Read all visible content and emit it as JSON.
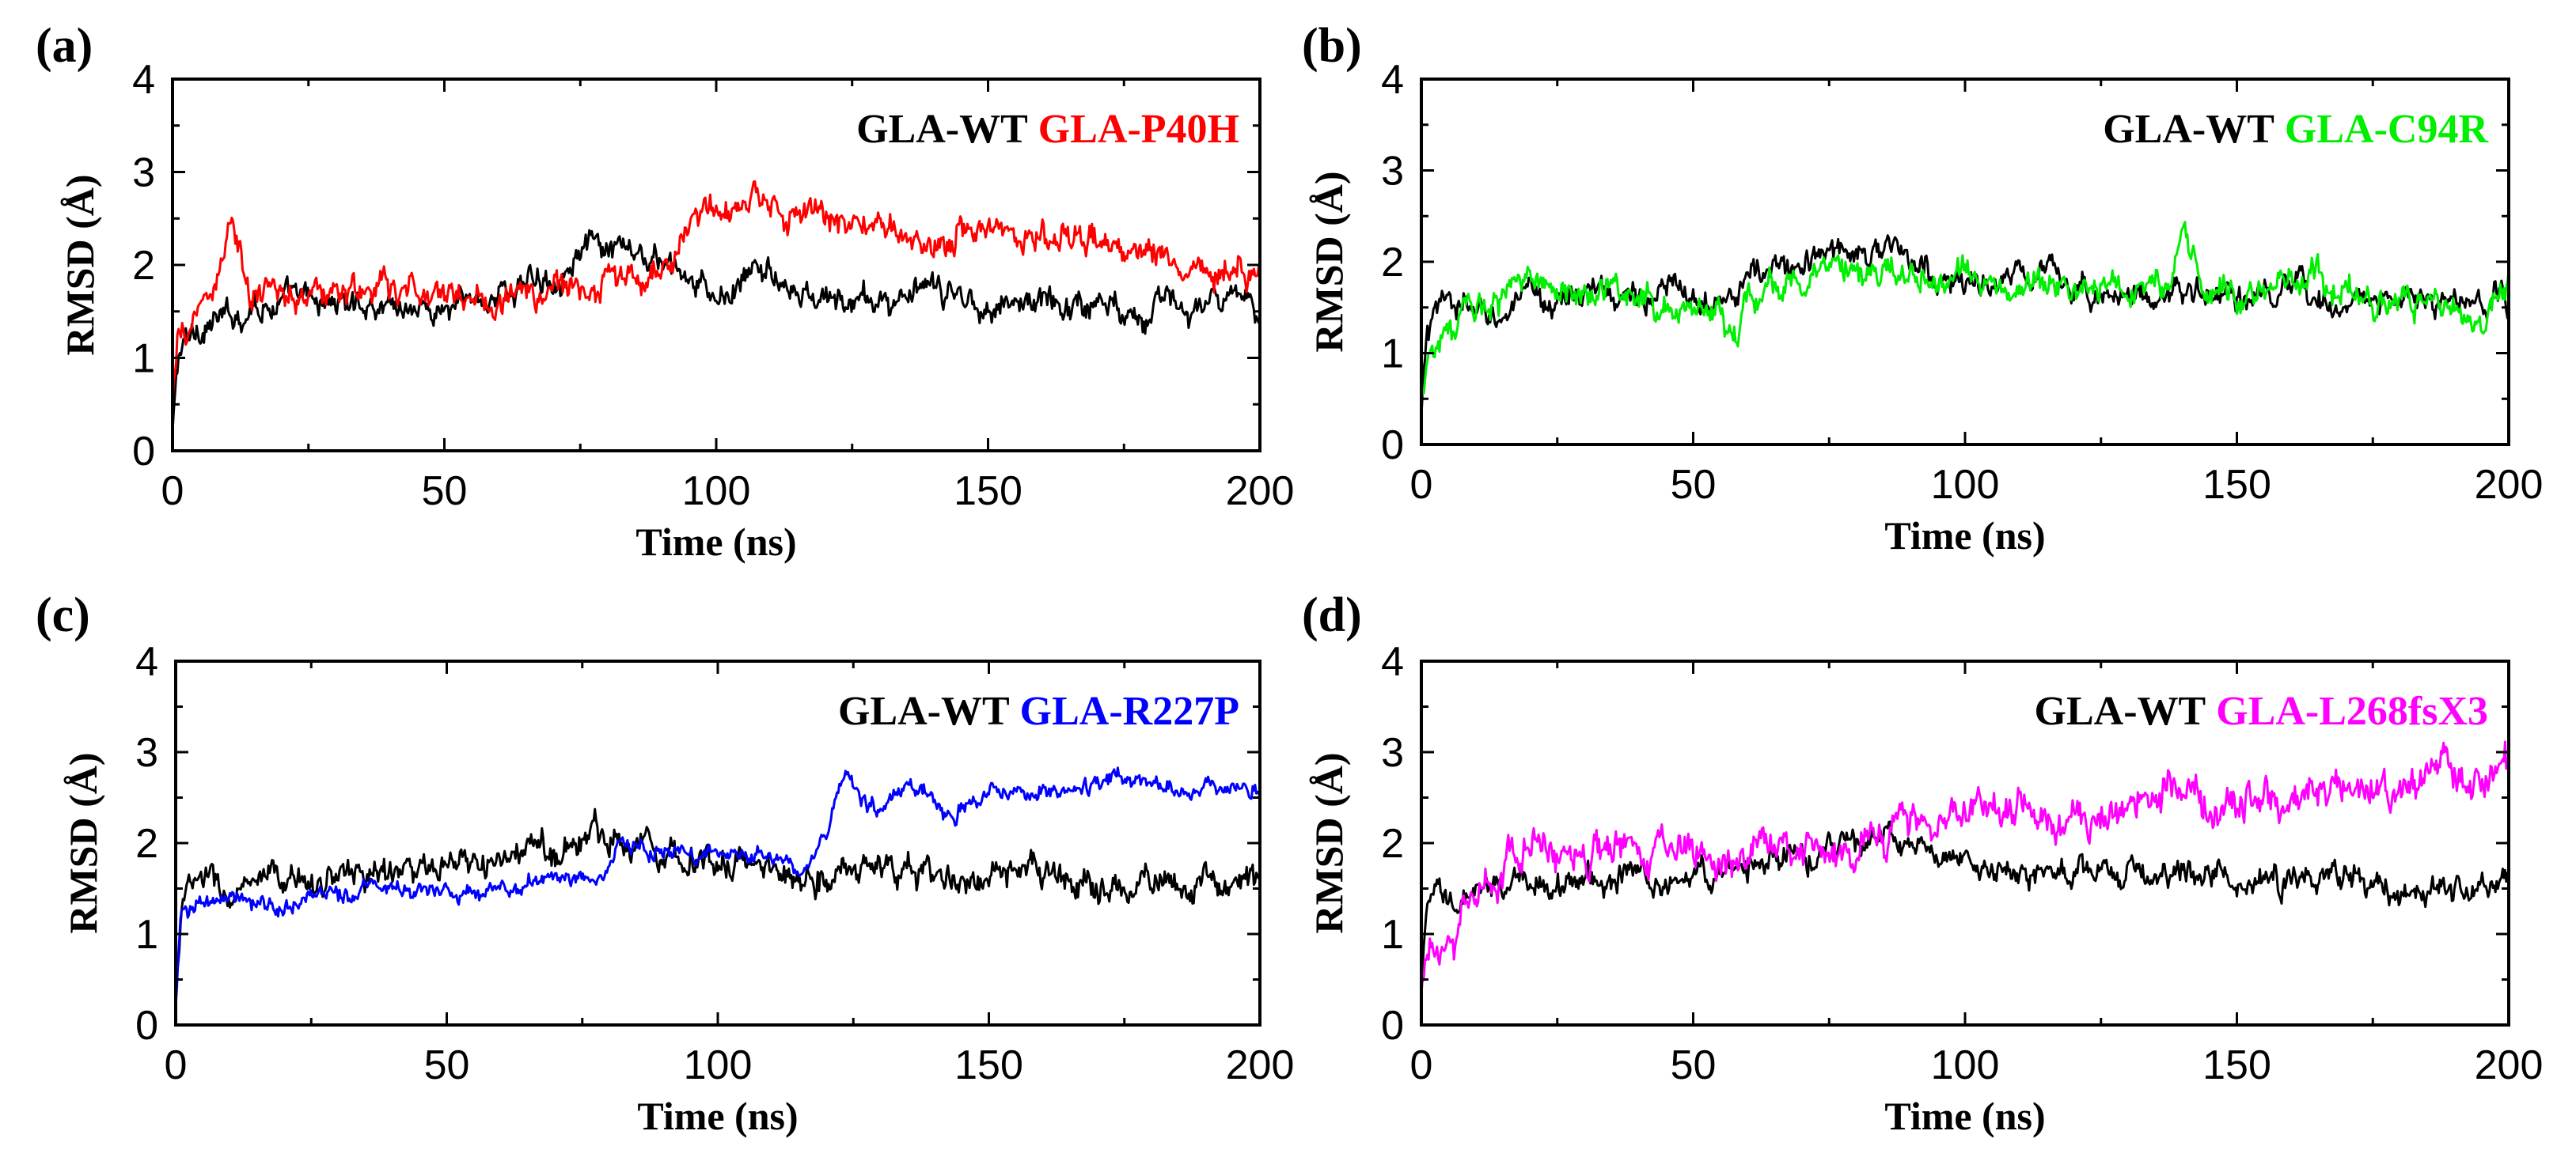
{
  "chart_data": [
    {
      "type": "line",
      "panel_label": "(a)",
      "xlabel": "Time (ns)",
      "ylabel": "RMSD (Å)",
      "xlim": [
        0,
        200
      ],
      "ylim": [
        0,
        4
      ],
      "xticks": [
        0,
        50,
        100,
        150,
        200
      ],
      "yticks": [
        0,
        1,
        2,
        3,
        4
      ],
      "legend_position": "top-right",
      "series": [
        {
          "name": "GLA-WT",
          "color": "#000000",
          "noise": 0.11,
          "points": [
            [
              0,
              0.2
            ],
            [
              1,
              1.0
            ],
            [
              3,
              1.2
            ],
            [
              6,
              1.4
            ],
            [
              10,
              1.4
            ],
            [
              15,
              1.6
            ],
            [
              20,
              1.6
            ],
            [
              30,
              1.6
            ],
            [
              40,
              1.6
            ],
            [
              50,
              1.5
            ],
            [
              60,
              1.7
            ],
            [
              70,
              1.9
            ],
            [
              75,
              2.2
            ],
            [
              80,
              2.1
            ],
            [
              85,
              2.1
            ],
            [
              90,
              2.0
            ],
            [
              95,
              1.8
            ],
            [
              100,
              1.6
            ],
            [
              105,
              1.8
            ],
            [
              110,
              2.0
            ],
            [
              112,
              1.7
            ],
            [
              120,
              1.6
            ],
            [
              130,
              1.6
            ],
            [
              140,
              1.7
            ],
            [
              150,
              1.6
            ],
            [
              160,
              1.6
            ],
            [
              170,
              1.6
            ],
            [
              180,
              1.55
            ],
            [
              190,
              1.55
            ],
            [
              200,
              1.55
            ]
          ]
        },
        {
          "name": "GLA-P40H",
          "color": "#ff0000",
          "noise": 0.12,
          "points": [
            [
              0,
              0.5
            ],
            [
              1,
              1.1
            ],
            [
              3,
              1.3
            ],
            [
              5,
              1.6
            ],
            [
              8,
              1.8
            ],
            [
              10,
              2.3
            ],
            [
              11,
              2.5
            ],
            [
              12,
              2.2
            ],
            [
              14,
              1.6
            ],
            [
              20,
              1.7
            ],
            [
              30,
              1.7
            ],
            [
              40,
              1.7
            ],
            [
              50,
              1.7
            ],
            [
              60,
              1.65
            ],
            [
              65,
              1.6
            ],
            [
              70,
              1.75
            ],
            [
              80,
              1.8
            ],
            [
              90,
              1.9
            ],
            [
              92,
              2.1
            ],
            [
              95,
              2.5
            ],
            [
              100,
              2.5
            ],
            [
              105,
              2.6
            ],
            [
              110,
              2.65
            ],
            [
              120,
              2.45
            ],
            [
              130,
              2.4
            ],
            [
              140,
              2.25
            ],
            [
              145,
              2.4
            ],
            [
              150,
              2.4
            ],
            [
              160,
              2.3
            ],
            [
              170,
              2.2
            ],
            [
              180,
              2.2
            ],
            [
              185,
              2.0
            ],
            [
              190,
              2.0
            ],
            [
              200,
              2.0
            ]
          ]
        }
      ]
    },
    {
      "type": "line",
      "panel_label": "(b)",
      "xlabel": "Time (ns)",
      "ylabel": "RMSD (Å)",
      "xlim": [
        0,
        200
      ],
      "ylim": [
        0,
        4
      ],
      "xticks": [
        0,
        50,
        100,
        150,
        200
      ],
      "yticks": [
        0,
        1,
        2,
        3,
        4
      ],
      "legend_position": "top-right",
      "series": [
        {
          "name": "GLA-WT",
          "color": "#000000",
          "noise": 0.11,
          "points": [
            [
              0,
              0.3
            ],
            [
              1,
              1.2
            ],
            [
              3,
              1.4
            ],
            [
              5,
              1.6
            ],
            [
              10,
              1.4
            ],
            [
              15,
              1.45
            ],
            [
              20,
              1.55
            ],
            [
              30,
              1.65
            ],
            [
              40,
              1.65
            ],
            [
              50,
              1.65
            ],
            [
              60,
              1.8
            ],
            [
              65,
              1.9
            ],
            [
              70,
              1.95
            ],
            [
              75,
              2.1
            ],
            [
              80,
              2.15
            ],
            [
              85,
              2.15
            ],
            [
              90,
              2.0
            ],
            [
              95,
              1.8
            ],
            [
              100,
              1.75
            ],
            [
              110,
              1.8
            ],
            [
              115,
              1.9
            ],
            [
              120,
              1.7
            ],
            [
              130,
              1.65
            ],
            [
              140,
              1.65
            ],
            [
              150,
              1.6
            ],
            [
              160,
              1.6
            ],
            [
              170,
              1.6
            ],
            [
              180,
              1.55
            ],
            [
              190,
              1.55
            ],
            [
              200,
              1.55
            ]
          ]
        },
        {
          "name": "GLA-C94R",
          "color": "#00ee00",
          "noise": 0.12,
          "points": [
            [
              0,
              0.5
            ],
            [
              1,
              1.0
            ],
            [
              3,
              1.2
            ],
            [
              10,
              1.4
            ],
            [
              15,
              1.7
            ],
            [
              20,
              1.75
            ],
            [
              30,
              1.7
            ],
            [
              40,
              1.65
            ],
            [
              45,
              1.5
            ],
            [
              50,
              1.45
            ],
            [
              55,
              1.45
            ],
            [
              58,
              1.4
            ],
            [
              62,
              1.6
            ],
            [
              65,
              1.75
            ],
            [
              70,
              1.85
            ],
            [
              80,
              1.85
            ],
            [
              90,
              1.85
            ],
            [
              100,
              1.8
            ],
            [
              110,
              1.75
            ],
            [
              120,
              1.7
            ],
            [
              130,
              1.75
            ],
            [
              138,
              1.8
            ],
            [
              140,
              2.25
            ],
            [
              142,
              2.1
            ],
            [
              145,
              1.7
            ],
            [
              150,
              1.65
            ],
            [
              160,
              1.7
            ],
            [
              165,
              1.85
            ],
            [
              170,
              1.7
            ],
            [
              180,
              1.6
            ],
            [
              190,
              1.55
            ],
            [
              195,
              1.5
            ],
            [
              200,
              1.8
            ]
          ]
        }
      ]
    },
    {
      "type": "line",
      "panel_label": "(c)",
      "xlabel": "Time (ns)",
      "ylabel": "RMSD (Å)",
      "xlim": [
        0,
        200
      ],
      "ylim": [
        0,
        4
      ],
      "xticks": [
        0,
        50,
        100,
        150,
        200
      ],
      "yticks": [
        0,
        1,
        2,
        3,
        4
      ],
      "legend_position": "top-right",
      "series": [
        {
          "name": "GLA-WT",
          "color": "#000000",
          "noise": 0.12,
          "points": [
            [
              0,
              0.3
            ],
            [
              1,
              1.3
            ],
            [
              3,
              1.5
            ],
            [
              6,
              1.6
            ],
            [
              10,
              1.4
            ],
            [
              20,
              1.55
            ],
            [
              30,
              1.65
            ],
            [
              40,
              1.7
            ],
            [
              50,
              1.65
            ],
            [
              60,
              1.8
            ],
            [
              70,
              1.95
            ],
            [
              75,
              2.05
            ],
            [
              80,
              2.1
            ],
            [
              85,
              2.05
            ],
            [
              90,
              1.95
            ],
            [
              100,
              1.8
            ],
            [
              110,
              1.7
            ],
            [
              120,
              1.65
            ],
            [
              125,
              1.7
            ],
            [
              130,
              1.75
            ],
            [
              140,
              1.6
            ],
            [
              150,
              1.6
            ],
            [
              160,
              1.6
            ],
            [
              170,
              1.55
            ],
            [
              180,
              1.55
            ],
            [
              190,
              1.55
            ],
            [
              200,
              1.55
            ]
          ]
        },
        {
          "name": "GLA-R227P",
          "color": "#0000ff",
          "noise": 0.07,
          "points": [
            [
              0,
              0.2
            ],
            [
              1,
              1.2
            ],
            [
              3,
              1.35
            ],
            [
              10,
              1.35
            ],
            [
              20,
              1.3
            ],
            [
              30,
              1.45
            ],
            [
              40,
              1.5
            ],
            [
              50,
              1.5
            ],
            [
              60,
              1.55
            ],
            [
              70,
              1.6
            ],
            [
              78,
              1.6
            ],
            [
              80,
              1.8
            ],
            [
              82,
              2.0
            ],
            [
              90,
              1.9
            ],
            [
              100,
              1.9
            ],
            [
              110,
              1.85
            ],
            [
              115,
              1.7
            ],
            [
              120,
              2.1
            ],
            [
              124,
              2.7
            ],
            [
              126,
              2.5
            ],
            [
              130,
              2.3
            ],
            [
              135,
              2.6
            ],
            [
              140,
              2.55
            ],
            [
              142,
              2.3
            ],
            [
              145,
              2.45
            ],
            [
              150,
              2.5
            ],
            [
              160,
              2.55
            ],
            [
              170,
              2.65
            ],
            [
              175,
              2.75
            ],
            [
              180,
              2.65
            ],
            [
              190,
              2.6
            ],
            [
              200,
              2.6
            ]
          ]
        }
      ]
    },
    {
      "type": "line",
      "panel_label": "(d)",
      "xlabel": "Time (ns)",
      "ylabel": "RMSD (Å)",
      "xlim": [
        0,
        200
      ],
      "ylim": [
        0,
        4
      ],
      "xticks": [
        0,
        50,
        100,
        150,
        200
      ],
      "yticks": [
        0,
        1,
        2,
        3,
        4
      ],
      "legend_position": "top-right",
      "series": [
        {
          "name": "GLA-WT",
          "color": "#000000",
          "noise": 0.11,
          "points": [
            [
              0,
              0.3
            ],
            [
              1,
              1.2
            ],
            [
              3,
              1.4
            ],
            [
              6,
              1.3
            ],
            [
              10,
              1.4
            ],
            [
              20,
              1.6
            ],
            [
              30,
              1.6
            ],
            [
              40,
              1.65
            ],
            [
              50,
              1.6
            ],
            [
              60,
              1.75
            ],
            [
              70,
              1.85
            ],
            [
              80,
              2.0
            ],
            [
              85,
              2.05
            ],
            [
              90,
              1.9
            ],
            [
              100,
              1.75
            ],
            [
              110,
              1.7
            ],
            [
              120,
              1.65
            ],
            [
              130,
              1.65
            ],
            [
              140,
              1.7
            ],
            [
              150,
              1.6
            ],
            [
              160,
              1.6
            ],
            [
              170,
              1.6
            ],
            [
              180,
              1.55
            ],
            [
              190,
              1.55
            ],
            [
              200,
              1.55
            ]
          ]
        },
        {
          "name": "GLA-L268fsX3",
          "color": "#ff00ff",
          "noise": 0.15,
          "points": [
            [
              0,
              0.4
            ],
            [
              1,
              1.0
            ],
            [
              3,
              1.1
            ],
            [
              6,
              0.95
            ],
            [
              8,
              1.2
            ],
            [
              10,
              1.5
            ],
            [
              15,
              1.7
            ],
            [
              20,
              1.85
            ],
            [
              30,
              1.9
            ],
            [
              40,
              1.9
            ],
            [
              50,
              1.95
            ],
            [
              60,
              1.9
            ],
            [
              70,
              1.95
            ],
            [
              80,
              2.0
            ],
            [
              85,
              2.1
            ],
            [
              90,
              2.25
            ],
            [
              100,
              2.4
            ],
            [
              105,
              2.45
            ],
            [
              110,
              2.35
            ],
            [
              120,
              2.3
            ],
            [
              125,
              2.25
            ],
            [
              130,
              2.45
            ],
            [
              135,
              2.6
            ],
            [
              140,
              2.55
            ],
            [
              150,
              2.45
            ],
            [
              160,
              2.5
            ],
            [
              170,
              2.55
            ],
            [
              180,
              2.6
            ],
            [
              185,
              2.7
            ],
            [
              190,
              2.75
            ],
            [
              200,
              2.8
            ]
          ]
        }
      ]
    }
  ]
}
